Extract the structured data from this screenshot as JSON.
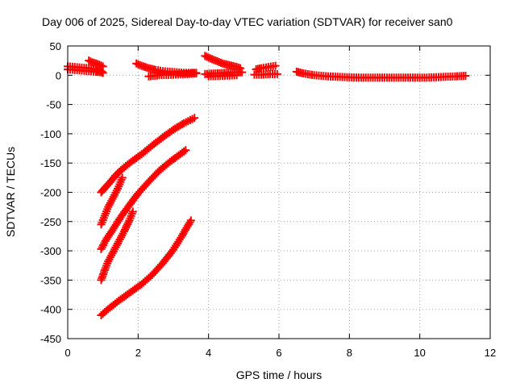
{
  "chart_data": {
    "type": "scatter",
    "title": "Day 006 of 2025, Sidereal Day-to-day VTEC variation (SDTVAR) for receiver san0",
    "xlabel": "GPS time / hours",
    "ylabel": "SDTVAR / TECUs",
    "xlim": [
      0,
      12
    ],
    "ylim": [
      -450,
      50
    ],
    "x_ticks": [
      "0",
      "2",
      "4",
      "6",
      "8",
      "10",
      "12"
    ],
    "y_ticks": [
      "50",
      "0",
      "-50",
      "-100",
      "-150",
      "-200",
      "-250",
      "-300",
      "-350",
      "-400",
      "-450"
    ],
    "grid": true,
    "marker": "plus",
    "color": "#ff0000",
    "series": [
      {
        "x": [
          0.0,
          0.2,
          0.4,
          0.6,
          0.8,
          0.95,
          1.0
        ],
        "y": [
          15,
          14,
          13,
          12,
          10,
          7,
          4
        ]
      },
      {
        "x": [
          0.0,
          0.2,
          0.4,
          0.6,
          0.8,
          0.95
        ],
        "y": [
          10,
          9,
          8,
          7,
          6,
          5
        ]
      },
      {
        "x": [
          0.6,
          0.7,
          0.8,
          0.9,
          1.0
        ],
        "y": [
          25,
          22,
          20,
          18,
          15
        ]
      },
      {
        "x": [
          1.95,
          2.1,
          2.3,
          2.5,
          2.7,
          2.9,
          3.1,
          3.3,
          3.5,
          3.65
        ],
        "y": [
          20,
          16,
          12,
          9,
          7,
          6,
          5,
          4,
          4,
          4
        ]
      },
      {
        "x": [
          2.3,
          2.6,
          3.0,
          3.4,
          3.65
        ],
        "y": [
          -2,
          0,
          1,
          2,
          3
        ]
      },
      {
        "x": [
          3.9,
          4.0,
          4.2,
          4.4,
          4.6,
          4.8,
          4.9
        ],
        "y": [
          33,
          30,
          25,
          20,
          17,
          14,
          12
        ]
      },
      {
        "x": [
          3.9,
          4.2,
          4.5,
          4.8,
          4.95
        ],
        "y": [
          2,
          3,
          4,
          5,
          5
        ]
      },
      {
        "x": [
          4.0,
          4.4,
          4.8
        ],
        "y": [
          -2,
          -1,
          0
        ]
      },
      {
        "x": [
          5.35,
          5.5,
          5.7,
          5.9
        ],
        "y": [
          10,
          12,
          14,
          16
        ]
      },
      {
        "x": [
          5.3,
          5.5,
          5.75,
          5.95
        ],
        "y": [
          1,
          1,
          2,
          2
        ]
      },
      {
        "x": [
          6.5,
          6.7,
          7.0,
          7.4,
          7.8,
          8.2,
          8.6,
          9.0,
          9.4,
          9.8,
          10.2,
          10.6,
          11.0,
          11.3
        ],
        "y": [
          6,
          3,
          0,
          -2,
          -3,
          -4,
          -4,
          -4,
          -4,
          -4,
          -4,
          -3,
          -2,
          -1
        ]
      },
      {
        "x": [
          0.95,
          1.05,
          1.2,
          1.35,
          1.55,
          1.8,
          2.1,
          2.4,
          2.7,
          3.0,
          3.3,
          3.6
        ],
        "y": [
          -200,
          -193,
          -183,
          -172,
          -160,
          -148,
          -135,
          -120,
          -106,
          -93,
          -82,
          -73
        ]
      },
      {
        "x": [
          0.95,
          1.05,
          1.15,
          1.3,
          1.45,
          1.55
        ],
        "y": [
          -255,
          -240,
          -225,
          -208,
          -190,
          -175
        ]
      },
      {
        "x": [
          0.95,
          1.1,
          1.3,
          1.5,
          1.75,
          2.0,
          2.3,
          2.6,
          2.9,
          3.15,
          3.35
        ],
        "y": [
          -297,
          -280,
          -262,
          -243,
          -222,
          -202,
          -182,
          -163,
          -148,
          -137,
          -128
        ]
      },
      {
        "x": [
          0.95,
          1.05,
          1.15,
          1.3,
          1.45,
          1.6,
          1.75,
          1.85
        ],
        "y": [
          -350,
          -333,
          -318,
          -301,
          -284,
          -267,
          -248,
          -233
        ]
      },
      {
        "x": [
          0.95,
          1.2,
          1.5,
          1.8,
          2.1,
          2.4,
          2.7,
          3.0,
          3.25,
          3.5
        ],
        "y": [
          -410,
          -397,
          -383,
          -370,
          -357,
          -341,
          -321,
          -298,
          -274,
          -248
        ]
      }
    ]
  }
}
